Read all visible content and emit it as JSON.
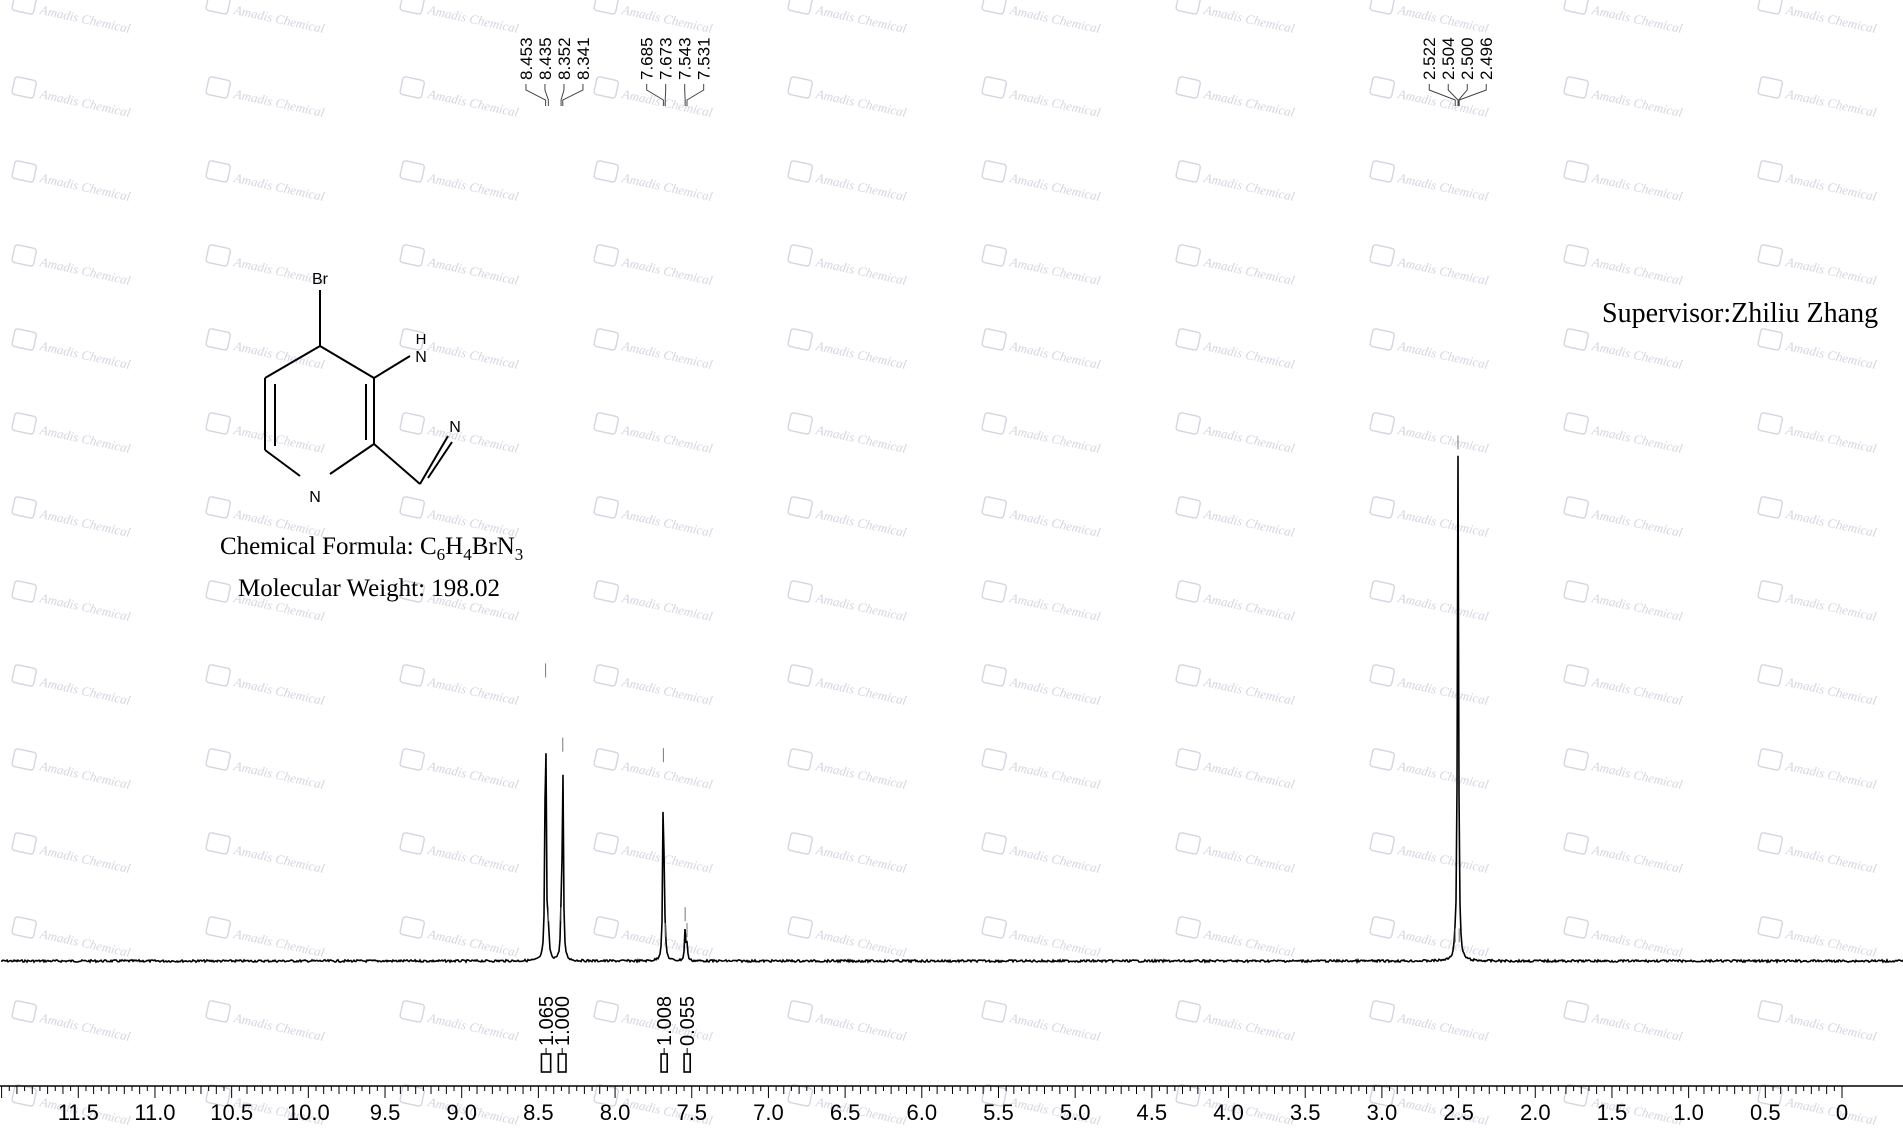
{
  "chart_data": {
    "type": "line",
    "xlabel": "",
    "ylabel": "",
    "x_reversed": true,
    "xlim": [
      -0.6,
      12.0
    ],
    "x_ticks": [
      "11.5",
      "11.0",
      "10.5",
      "10.0",
      "9.5",
      "9.0",
      "8.5",
      "8.0",
      "7.5",
      "7.0",
      "6.5",
      "6.0",
      "5.5",
      "5.0",
      "4.5",
      "4.0",
      "3.5",
      "3.0",
      "2.5",
      "2.0",
      "1.5",
      "1.0",
      "0.5",
      "0"
    ],
    "peaks": [
      {
        "ppm": 8.453,
        "height": 0.52
      },
      {
        "ppm": 8.435,
        "height": 0.06
      },
      {
        "ppm": 8.352,
        "height": 0.06
      },
      {
        "ppm": 8.341,
        "height": 0.38
      },
      {
        "ppm": 7.685,
        "height": 0.36
      },
      {
        "ppm": 7.673,
        "height": 0.03
      },
      {
        "ppm": 7.543,
        "height": 0.06
      },
      {
        "ppm": 7.531,
        "height": 0.03
      },
      {
        "ppm": 2.504,
        "height": 0.95
      },
      {
        "ppm": 2.522,
        "height": 0.02
      },
      {
        "ppm": 2.496,
        "height": 0.02
      }
    ],
    "peak_label_groups": [
      {
        "labels": [
          "8.453",
          "8.435",
          "8.352",
          "8.341"
        ]
      },
      {
        "labels": [
          "7.685",
          "7.673",
          "7.543",
          "7.531"
        ]
      },
      {
        "labels": [
          "2.522",
          "2.504",
          "2.500",
          "2.496"
        ]
      }
    ],
    "integrals": [
      {
        "label": "1.065",
        "from": 8.48,
        "to": 8.42
      },
      {
        "label": "1.000",
        "from": 8.37,
        "to": 8.32
      },
      {
        "label": "1.008",
        "from": 7.7,
        "to": 7.66
      },
      {
        "label": "0.055",
        "from": 7.55,
        "to": 7.51
      }
    ]
  },
  "annotations": {
    "supervisor": "Supervisor:Zhiliu Zhang",
    "formula_label": "Chemical Formula: C",
    "formula_sub1": "6",
    "formula_h": "H",
    "formula_sub2": "4",
    "formula_br": "BrN",
    "formula_sub3": "3",
    "mw": "Molecular Weight: 198.02",
    "watermark": "Amadis Chemical"
  },
  "structure": {
    "br_label": "Br",
    "nh_h_label": "H",
    "nh_n_label": "N",
    "n_label": "N",
    "pyridine_n_label": "N"
  },
  "colors": {
    "spectrum": "#000000",
    "watermark": "#b0b4c8",
    "background": "#ffffff"
  }
}
